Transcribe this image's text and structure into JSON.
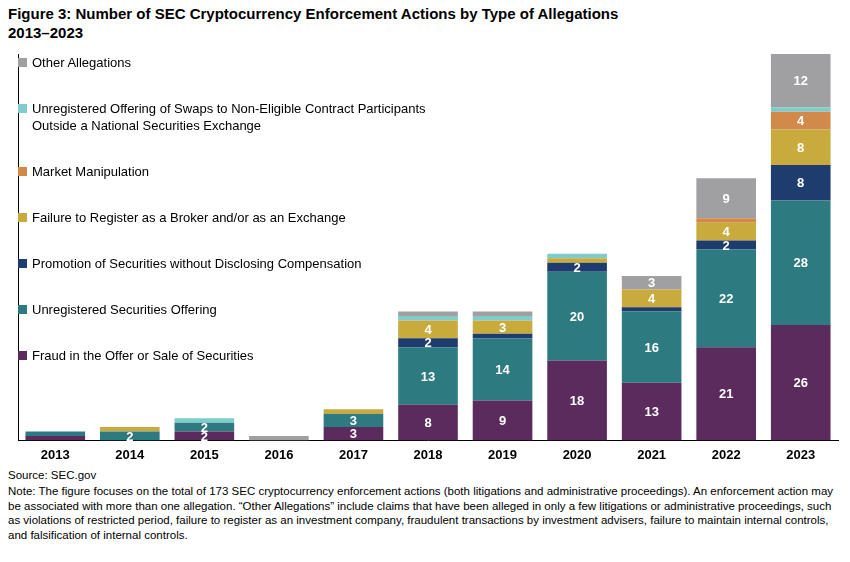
{
  "chart_data": {
    "type": "bar",
    "title": "Figure 3: Number of SEC Cryptocurrency Enforcement Actions by Type of Allegations",
    "subtitle": "2013–2023",
    "source": "Source: SEC.gov",
    "note": "Note: The figure focuses on the total of 173 SEC cryptocurrency enforcement actions (both litigations and administrative proceedings). An enforcement action may be associated with more than one allegation. “Other Allegations” include claims that have been alleged in only a few litigations or administrative proceedings, such as violations of restricted period, failure to register as an investment company, fraudulent transactions by investment advisers, failure to maintain internal controls, and falsification of internal controls.",
    "categories": [
      "2013",
      "2014",
      "2015",
      "2016",
      "2017",
      "2018",
      "2019",
      "2020",
      "2021",
      "2022",
      "2023"
    ],
    "stacked": true,
    "data_labels": true,
    "legend": "top-left",
    "grid": false,
    "tick_labels": "x",
    "ylim": [
      0,
      87
    ],
    "yticks": [],
    "series": [
      {
        "name": "Fraud in the Offer or Sale of Securities",
        "color": "#5c2b5d",
        "values": [
          1,
          0,
          2,
          0,
          3,
          8,
          9,
          18,
          13,
          21,
          26
        ],
        "value_labels": [
          null,
          null,
          "2",
          null,
          "3",
          "8",
          "9",
          "18",
          "13",
          "21",
          "26"
        ]
      },
      {
        "name": "Unregistered Securities Offering",
        "color": "#2d7b81",
        "values": [
          1,
          2,
          2,
          0,
          3,
          13,
          14,
          20,
          16,
          22,
          28
        ],
        "value_labels": [
          null,
          "2",
          "2",
          null,
          "3",
          "13",
          "14",
          "20",
          "16",
          "22",
          "28"
        ]
      },
      {
        "name": "Promotion of Securities without Disclosing Compensation",
        "color": "#1f3c6e",
        "values": [
          0,
          0,
          0,
          0,
          0,
          2,
          1,
          2,
          1,
          2,
          8
        ],
        "value_labels": [
          null,
          null,
          null,
          null,
          null,
          "2",
          null,
          "2",
          null,
          "2",
          "8"
        ]
      },
      {
        "name": "Failure to Register as a Broker and/or as an Exchange",
        "color": "#c9aa3c",
        "values": [
          0,
          1,
          0,
          0,
          1,
          4,
          3,
          1,
          4,
          4,
          8
        ],
        "value_labels": [
          null,
          null,
          null,
          null,
          null,
          "4",
          "3",
          null,
          "4",
          "4",
          "8"
        ]
      },
      {
        "name": "Market Manipulation",
        "color": "#d28a4b",
        "values": [
          0,
          0,
          0,
          0,
          0,
          0,
          0,
          0,
          0,
          1,
          4
        ],
        "value_labels": [
          null,
          null,
          null,
          null,
          null,
          null,
          null,
          null,
          null,
          null,
          "4"
        ]
      },
      {
        "name": "Unregistered Offering of Swaps to Non-Eligible Contract Participants Outside a National Securities Exchange",
        "color": "#80cccc",
        "values": [
          0,
          0,
          1,
          0,
          0,
          1,
          1,
          1,
          0,
          0,
          1
        ],
        "value_labels": [
          null,
          null,
          null,
          null,
          null,
          null,
          null,
          null,
          null,
          null,
          null
        ]
      },
      {
        "name": "Other Allegations",
        "color": "#a0a0a2",
        "values": [
          0,
          0,
          0,
          1,
          0,
          1,
          1,
          0,
          3,
          9,
          12
        ],
        "value_labels": [
          null,
          null,
          null,
          null,
          null,
          null,
          null,
          null,
          "3",
          "9",
          "12"
        ]
      }
    ]
  }
}
